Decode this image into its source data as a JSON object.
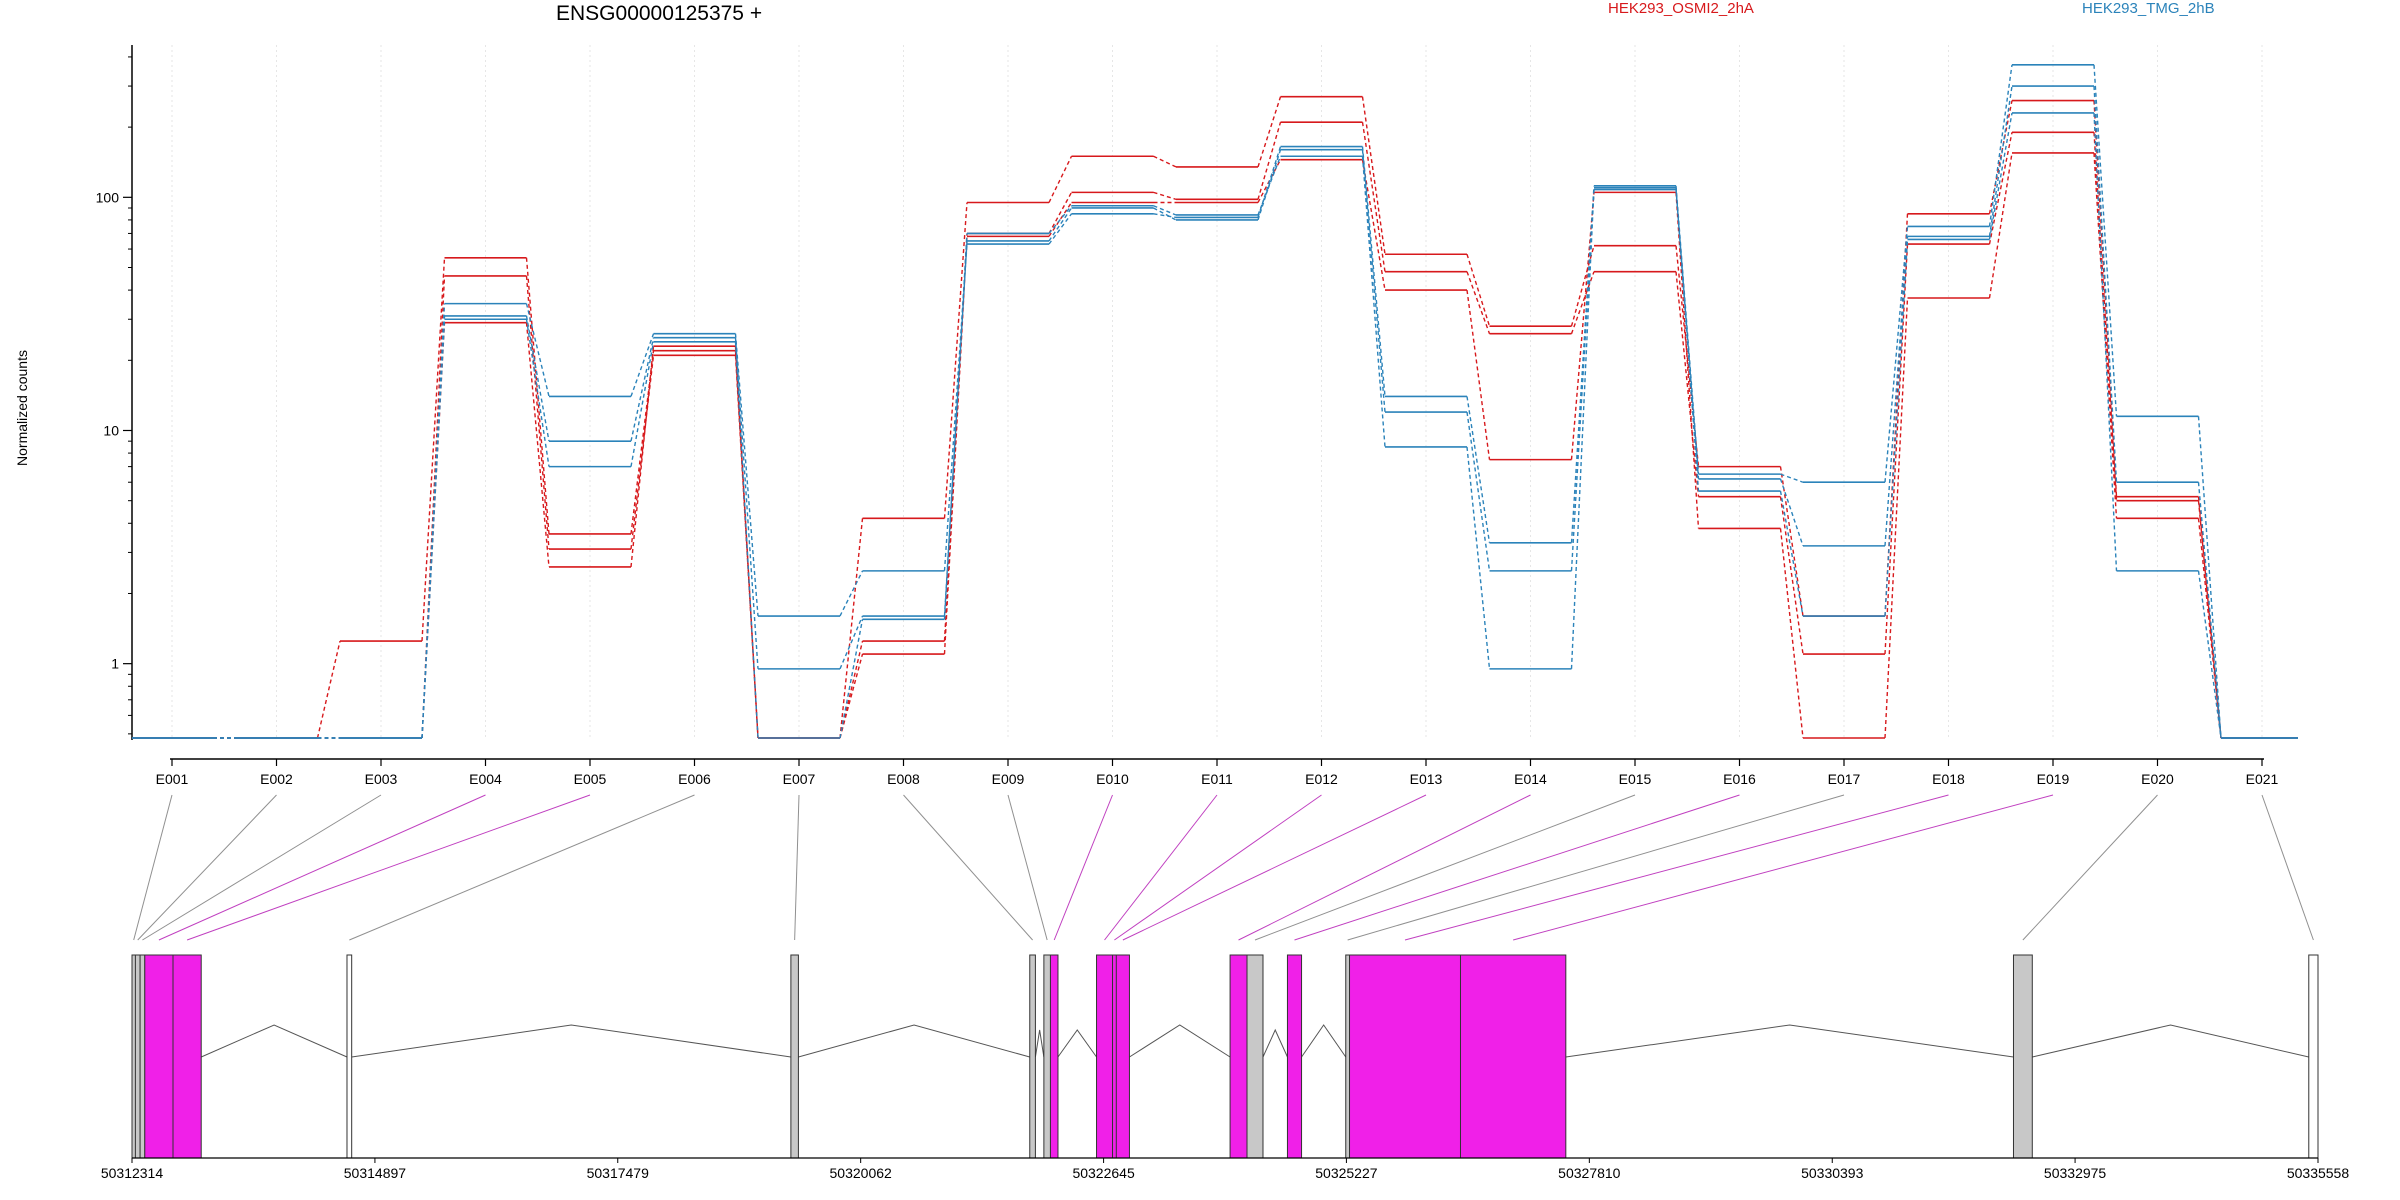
{
  "header": {
    "gene_title": "ENSG00000125375 +",
    "legend_a": "HEK293_OSMI2_2hA",
    "legend_b": "HEK293_TMG_2hB"
  },
  "colors": {
    "condition_a": "#d7191c",
    "condition_b": "#2b83ba",
    "exon_significant": "#f020e8",
    "exon_gray": "#c8c8c8",
    "connector_significant": "#c040c0",
    "connector_gray": "#909090"
  },
  "chart_data": {
    "type": "line",
    "title": "ENSG00000125375 +",
    "xlabel": "",
    "ylabel": "Normalized counts",
    "y_scale": "log",
    "ylim": [
      0.48,
      450
    ],
    "y_ticks": [
      1,
      10,
      100
    ],
    "y_tick_labels": [
      "1",
      "10",
      "100"
    ],
    "grid": "vertical dotted at exon centers",
    "legend_placement": "top",
    "categories": [
      "E001",
      "E002",
      "E003",
      "E004",
      "E005",
      "E006",
      "E007",
      "E008",
      "E009",
      "E010",
      "E011",
      "E012",
      "E013",
      "E014",
      "E015",
      "E016",
      "E017",
      "E018",
      "E019",
      "E020",
      "E021"
    ],
    "series": [
      {
        "name": "HEK293_OSMI2_2hA",
        "values": [
          0.48,
          0.48,
          1.25,
          55,
          3.6,
          22,
          0.48,
          4.2,
          95,
          150,
          135,
          270,
          57,
          28,
          62,
          7,
          1.6,
          85,
          260,
          5.2,
          0.48
        ]
      },
      {
        "name": "HEK293_OSMI2_2hA",
        "values": [
          0.48,
          0.48,
          0.48,
          46,
          3.1,
          21,
          0.48,
          1.25,
          70,
          105,
          98,
          210,
          48,
          26,
          48,
          5.2,
          1.1,
          63,
          190,
          5.0,
          0.48
        ]
      },
      {
        "name": "HEK293_OSMI2_2hA",
        "values": [
          0.48,
          0.48,
          0.48,
          29,
          2.6,
          23,
          0.48,
          1.1,
          68,
          95,
          95,
          145,
          40,
          7.5,
          105,
          3.8,
          0.48,
          37,
          155,
          4.2,
          0.48
        ]
      },
      {
        "name": "HEK293_TMG_2hB",
        "values": [
          0.48,
          0.48,
          0.48,
          35,
          14,
          26,
          1.6,
          2.5,
          63,
          85,
          82,
          165,
          14,
          3.3,
          112,
          6.5,
          6,
          75,
          370,
          11.5,
          0.48
        ]
      },
      {
        "name": "HEK293_TMG_2hB",
        "values": [
          0.48,
          0.48,
          0.48,
          31,
          9,
          25,
          0.95,
          1.6,
          65,
          90,
          80,
          160,
          12,
          2.5,
          108,
          6.2,
          3.2,
          68,
          300,
          6.0,
          0.48
        ]
      },
      {
        "name": "HEK293_TMG_2hB",
        "values": [
          0.48,
          0.48,
          0.48,
          30,
          7,
          24,
          0.48,
          1.55,
          70,
          92,
          84,
          150,
          8.5,
          0.95,
          110,
          5.5,
          1.6,
          66,
          230,
          2.5,
          0.48
        ]
      }
    ],
    "coordinate_ticks": [
      "50312314",
      "50314897",
      "50317479",
      "50320062",
      "50322645",
      "50325227",
      "50327810",
      "50330393",
      "50332975",
      "50335558"
    ],
    "exon_genomic_ranges": [
      {
        "exon": "E001",
        "start": 50312314,
        "end": 50312350,
        "significant": false
      },
      {
        "exon": "E002",
        "start": 50312350,
        "end": 50312400,
        "significant": false
      },
      {
        "exon": "E003",
        "start": 50312400,
        "end": 50312450,
        "significant": false
      },
      {
        "exon": "E004",
        "start": 50312450,
        "end": 50312750,
        "significant": true
      },
      {
        "exon": "E005",
        "start": 50312750,
        "end": 50313050,
        "significant": true
      },
      {
        "exon": "E006",
        "start": 50314600,
        "end": 50314650,
        "significant": false
      },
      {
        "exon": "E007",
        "start": 50319320,
        "end": 50319400,
        "significant": false
      },
      {
        "exon": "E008",
        "start": 50321860,
        "end": 50321920,
        "significant": false
      },
      {
        "exon": "E009",
        "start": 50322010,
        "end": 50322080,
        "significant": false
      },
      {
        "exon": "E010",
        "start": 50322080,
        "end": 50322160,
        "significant": true
      },
      {
        "exon": "E011",
        "start": 50322570,
        "end": 50322740,
        "significant": true
      },
      {
        "exon": "E012",
        "start": 50322740,
        "end": 50322780,
        "significant": true
      },
      {
        "exon": "E013",
        "start": 50322780,
        "end": 50322920,
        "significant": true
      },
      {
        "exon": "E014",
        "start": 50323990,
        "end": 50324170,
        "significant": true
      },
      {
        "exon": "E015",
        "start": 50324170,
        "end": 50324340,
        "significant": false
      },
      {
        "exon": "E016",
        "start": 50324600,
        "end": 50324750,
        "significant": true
      },
      {
        "exon": "E017",
        "start": 50325220,
        "end": 50325260,
        "significant": false
      },
      {
        "exon": "E018",
        "start": 50325260,
        "end": 50326440,
        "significant": true
      },
      {
        "exon": "E019",
        "start": 50326440,
        "end": 50327560,
        "significant": true
      },
      {
        "exon": "E020",
        "start": 50332320,
        "end": 50332520,
        "significant": false
      },
      {
        "exon": "E021",
        "start": 50335460,
        "end": 50335558,
        "significant": false
      }
    ]
  }
}
